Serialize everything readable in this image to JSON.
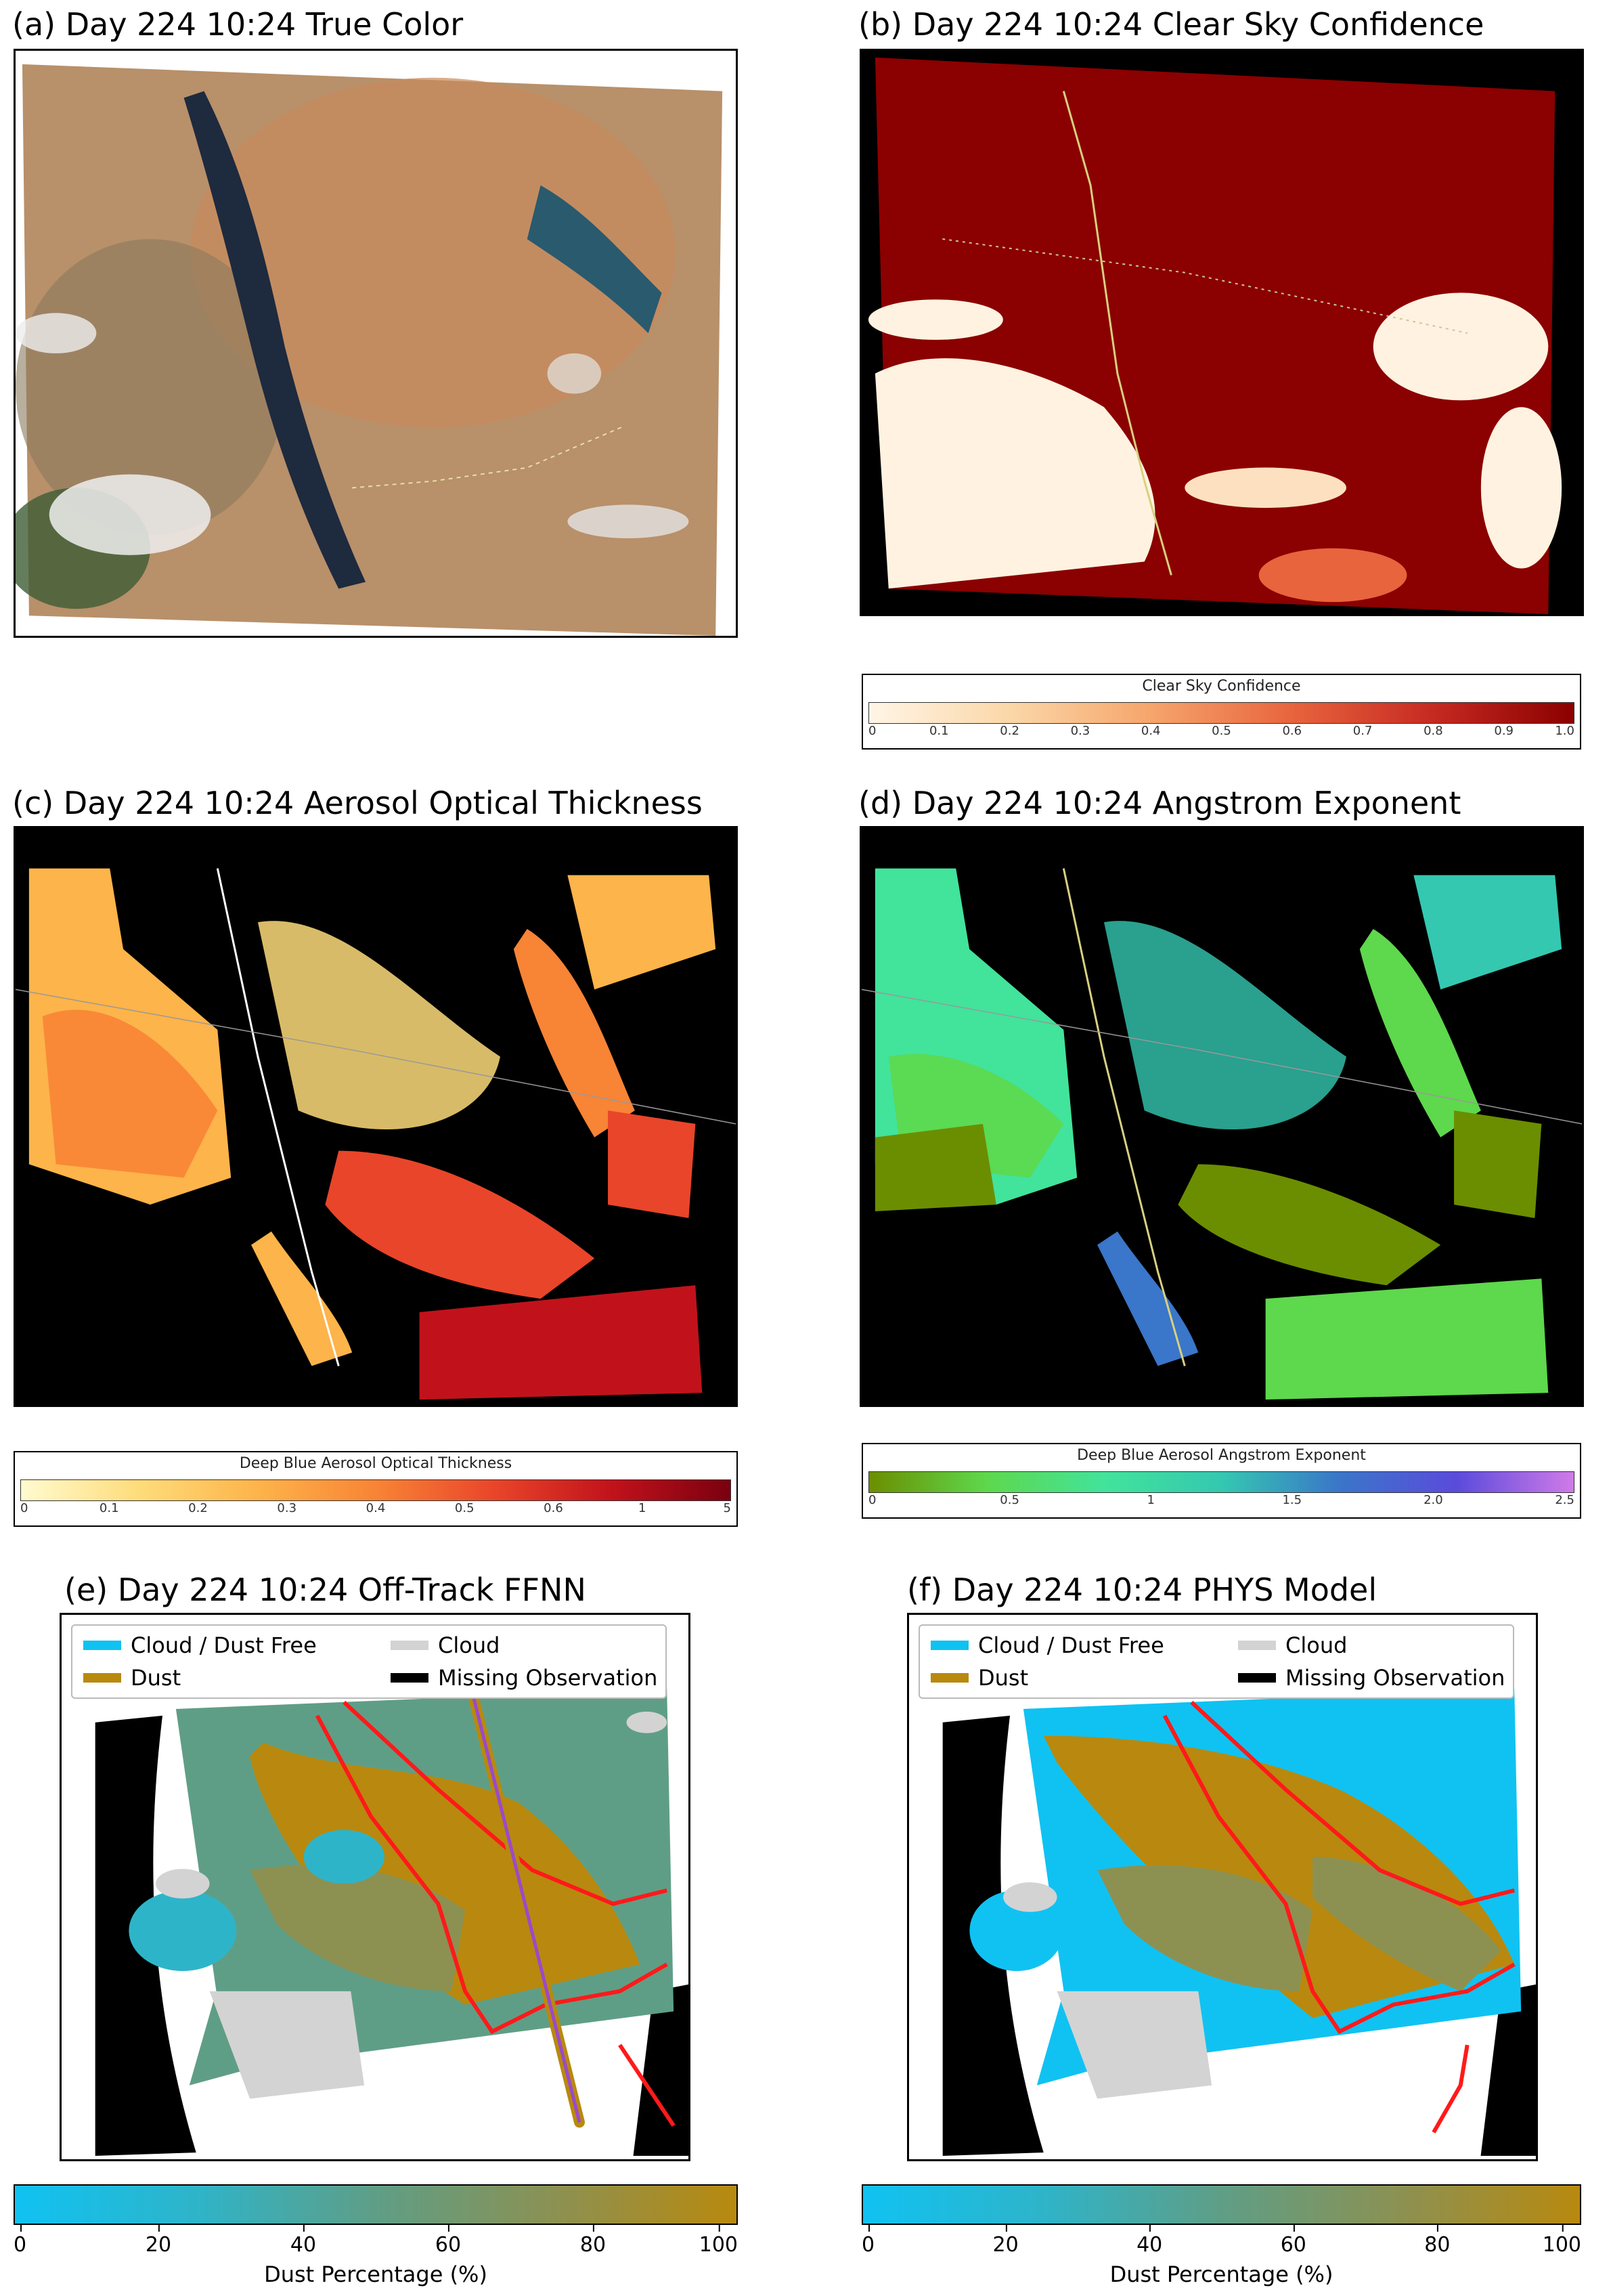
{
  "panels": {
    "a": {
      "title": "(a) Day 224 10:24 True Color"
    },
    "b": {
      "title": "(b) Day 224 10:24 Clear Sky Confidence"
    },
    "c": {
      "title": "(c) Day 224 10:24 Aerosol Optical Thickness"
    },
    "d": {
      "title": "(d) Day 224 10:24 Angstrom Exponent"
    },
    "e": {
      "title": "(e) Day 224 10:24 Off-Track FFNN"
    },
    "f": {
      "title": "(f) Day 224 10:24 PHYS Model"
    }
  },
  "colorbars": {
    "clear_sky": {
      "label": "Clear Sky Confidence",
      "ticks": [
        "0",
        "0.1",
        "0.2",
        "0.3",
        "0.4",
        "0.5",
        "0.6",
        "0.7",
        "0.8",
        "0.9",
        "1.0"
      ],
      "colors": [
        "#fff5e6",
        "#fbd7a8",
        "#f6a56b",
        "#e8643d",
        "#c62a21",
        "#8b0000"
      ]
    },
    "aot": {
      "label": "Deep Blue Aerosol Optical Thickness",
      "ticks": [
        "0",
        "0.1",
        "0.2",
        "0.3",
        "0.4",
        "0.5",
        "0.6",
        "1",
        "5"
      ],
      "colors": [
        "#fffbd0",
        "#fedc7a",
        "#fdb44a",
        "#f88435",
        "#e9452a",
        "#c1121b",
        "#7a0010"
      ]
    },
    "angstrom": {
      "label": "Deep Blue Aerosol Angstrom Exponent",
      "ticks": [
        "0",
        "0.5",
        "1",
        "1.5",
        "2.0",
        "2.5"
      ],
      "colors": [
        "#6b8e00",
        "#5ed84c",
        "#42e39b",
        "#34c8b1",
        "#3a76c9",
        "#5a4bdc",
        "#d07ae8"
      ]
    },
    "dust_e": {
      "label": "Dust Percentage (%)",
      "ticks": [
        "0",
        "20",
        "40",
        "60",
        "80",
        "100"
      ],
      "colors": [
        "#10c2f2",
        "#2eb4c9",
        "#5f9e86",
        "#8c9152",
        "#b8890e"
      ]
    },
    "dust_f": {
      "label": "Dust Percentage (%)",
      "ticks": [
        "0",
        "20",
        "40",
        "60",
        "80",
        "100"
      ],
      "colors": [
        "#10c2f2",
        "#2eb4c9",
        "#5f9e86",
        "#8c9152",
        "#b8890e"
      ]
    }
  },
  "legend": {
    "items": [
      {
        "label": "Cloud / Dust Free",
        "color": "#10c2f2"
      },
      {
        "label": "Cloud",
        "color": "#d3d3d3"
      },
      {
        "label": "Dust",
        "color": "#b8890e"
      },
      {
        "label": "Missing Observation",
        "color": "#000000"
      }
    ]
  }
}
